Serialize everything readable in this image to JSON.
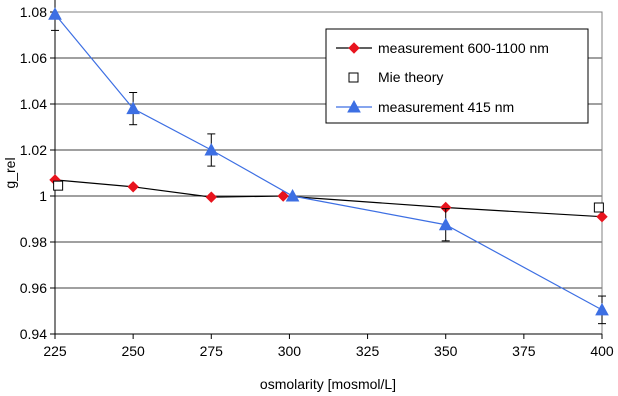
{
  "chart_data": {
    "type": "line",
    "title": "",
    "xlabel": "osmolarity [mosmol/L]",
    "ylabel": "g_rel",
    "xlim": [
      225,
      400
    ],
    "ylim": [
      0.94,
      1.08
    ],
    "x_ticks": [
      225,
      250,
      275,
      300,
      325,
      350,
      375,
      400
    ],
    "x_tick_labels": [
      "225",
      "250",
      "275",
      "300",
      "325",
      "350",
      "375",
      "400"
    ],
    "y_ticks": [
      0.94,
      0.96,
      0.98,
      1.0,
      1.02,
      1.04,
      1.06,
      1.08
    ],
    "y_tick_labels": [
      "0.94",
      "0.96",
      "0.98",
      "1",
      "1.02",
      "1.04",
      "1.06",
      "1.08"
    ],
    "grid": "horizontal",
    "legend_position": "top-right",
    "series": [
      {
        "name": "measurement 600-1100 nm",
        "color": "#000000",
        "marker": "diamond",
        "marker_color": "#e8141e",
        "x": [
          225,
          250,
          275,
          298,
          350,
          400
        ],
        "y": [
          1.007,
          1.004,
          0.9995,
          1.0,
          0.995,
          0.991
        ]
      },
      {
        "name": "Mie theory",
        "color": "#000000",
        "marker": "square-open",
        "line": false,
        "x": [
          226,
          399
        ],
        "y": [
          1.0045,
          0.995
        ]
      },
      {
        "name": "measurement 415 nm",
        "color": "#3d6fe3",
        "marker": "triangle",
        "marker_color": "#3d6fe3",
        "x": [
          225,
          250,
          275,
          301,
          350,
          400
        ],
        "y": [
          1.079,
          1.038,
          1.02,
          1.0,
          0.9875,
          0.9505
        ],
        "error": [
          0.007,
          0.007,
          0.007,
          0.0,
          0.007,
          0.006
        ]
      }
    ]
  }
}
